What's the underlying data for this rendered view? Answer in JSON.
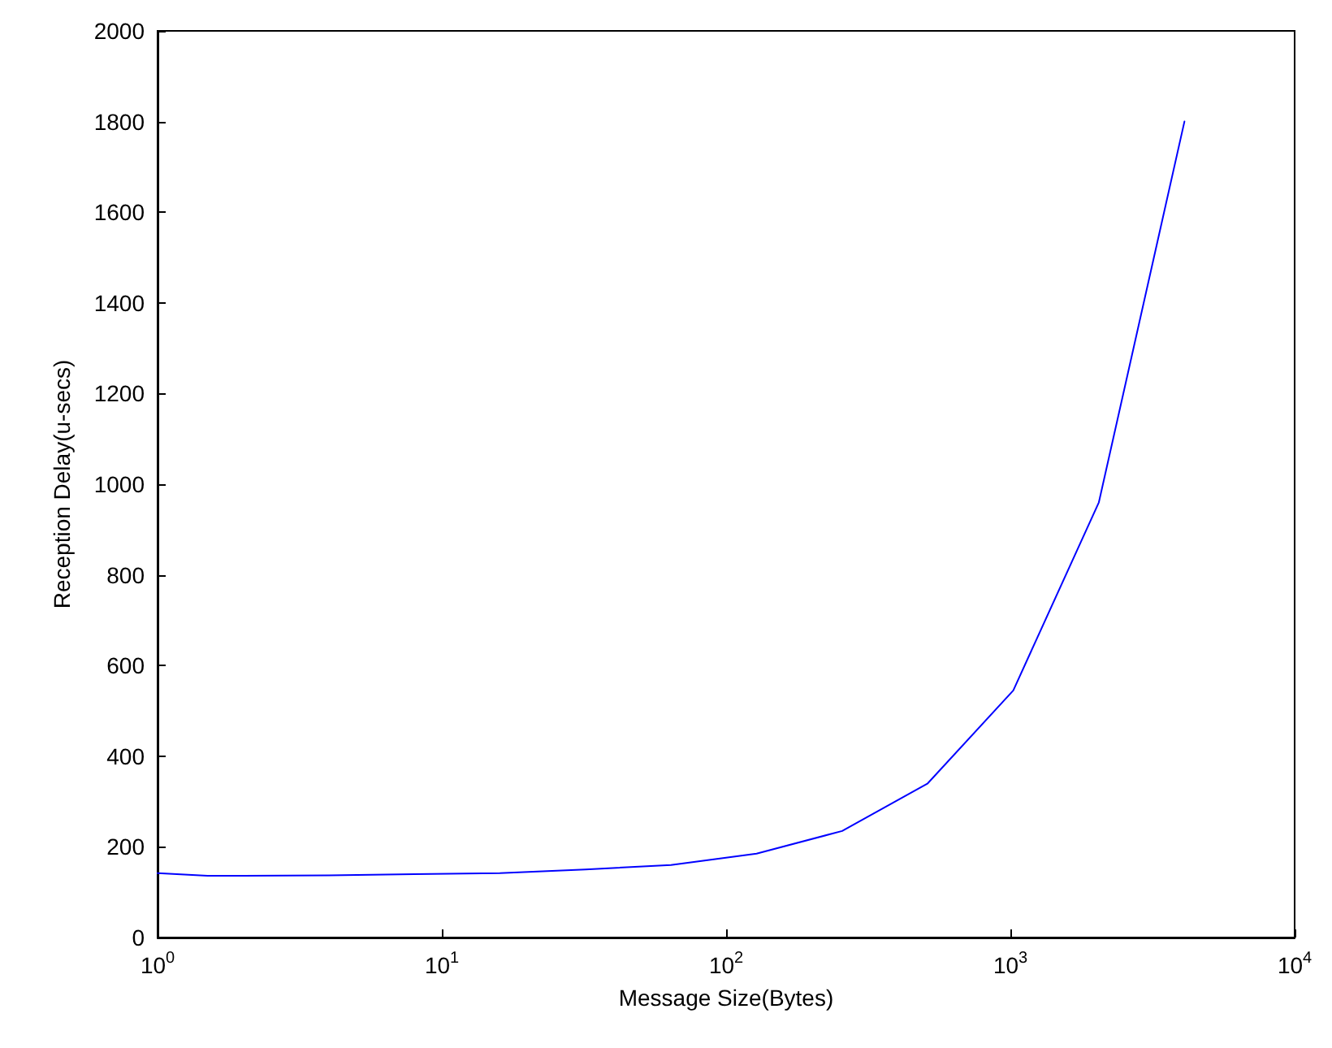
{
  "chart_data": {
    "type": "line",
    "xlabel": "Message Size(Bytes)",
    "ylabel": "Reception Delay(u-secs)",
    "x": [
      1,
      1.5,
      2,
      4,
      8,
      16,
      32,
      64,
      128,
      256,
      512,
      1024,
      2048,
      4096
    ],
    "series": [
      {
        "color": "#0000ff",
        "values": [
          142,
          136,
          136,
          137,
          140,
          142,
          150,
          160,
          185,
          235,
          340,
          545,
          960,
          1800
        ]
      }
    ],
    "log": "x",
    "xlim": [
      1,
      10000
    ],
    "xticks": [
      {
        "value": 1,
        "label": "10$^{0}$"
      },
      {
        "value": 10,
        "label": "10$^{1}$"
      },
      {
        "value": 100,
        "label": "10$^{2}$"
      },
      {
        "value": 1000,
        "label": "10$^{3}$"
      },
      {
        "value": 10000,
        "label": "10$^{4}$"
      }
    ],
    "ylim": [
      0,
      2000
    ],
    "yticks": [
      0,
      200,
      400,
      600,
      800,
      1000,
      1200,
      1400,
      1600,
      1800,
      2000
    ],
    "grid": false,
    "marker": "none",
    "line_style": "solid"
  }
}
